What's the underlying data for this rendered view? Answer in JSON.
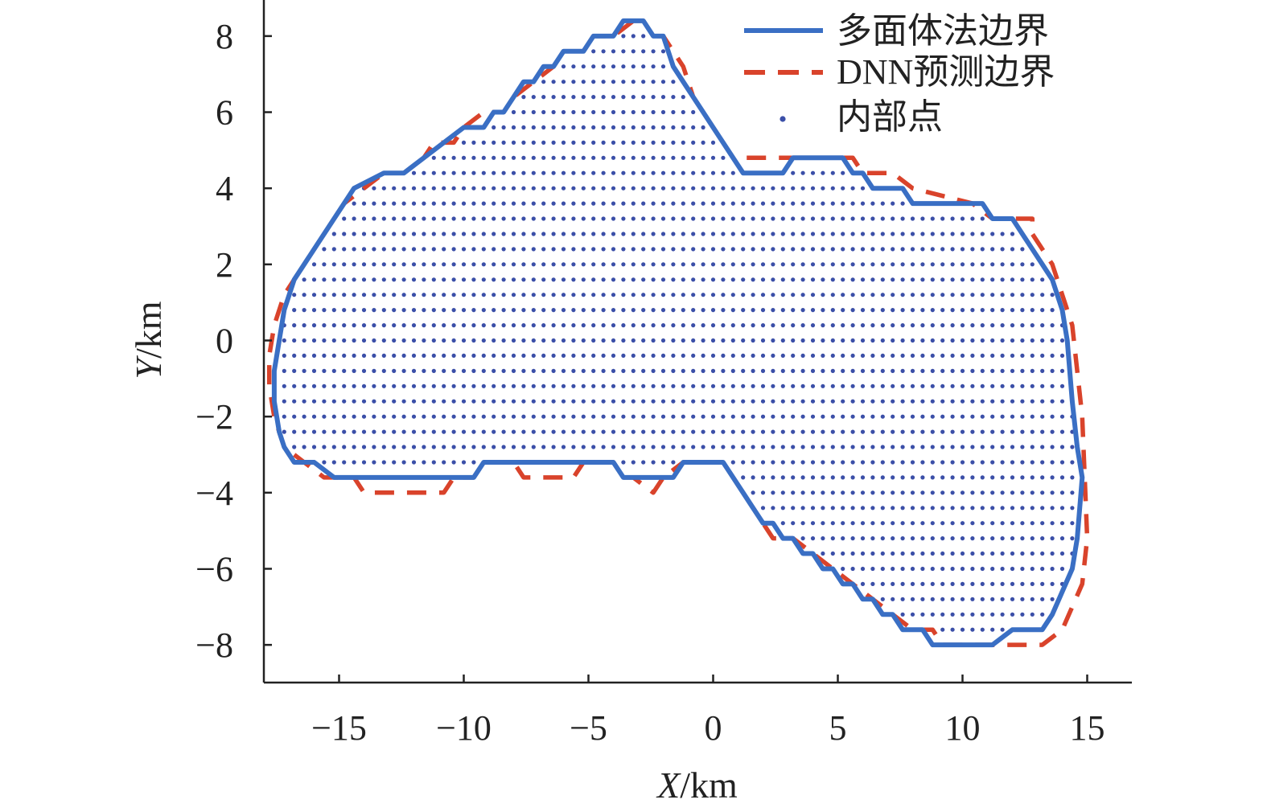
{
  "chart_data": {
    "type": "scatter",
    "title": "",
    "xlabel": "X/km",
    "ylabel": "Y/km",
    "xlabel_parts": {
      "var": "X",
      "unit": "/km"
    },
    "ylabel_parts": {
      "var": "Y",
      "unit": "/km"
    },
    "xlim": [
      -18,
      17
    ],
    "ylim": [
      -9,
      8.6
    ],
    "xticks": [
      -15,
      -10,
      -5,
      0,
      5,
      10,
      15
    ],
    "yticks": [
      -8,
      -6,
      -4,
      -2,
      0,
      2,
      4,
      6,
      8
    ],
    "xtick_labels": [
      "−15",
      "−10",
      "−5",
      "0",
      "5",
      "10",
      "15"
    ],
    "ytick_labels": [
      "−8",
      "−6",
      "−4",
      "−2",
      "0",
      "2",
      "4",
      "6",
      "8"
    ],
    "grid": false,
    "legend_position": "top-right",
    "colors": {
      "polyhedral": "#3a6fc4",
      "dnn": "#d9432b",
      "interior": "#3b4fa8"
    },
    "grid_spacing": 0.4,
    "series": [
      {
        "name": "多面体法边界",
        "style": "solid",
        "points": [
          [
            -3.6,
            8.4
          ],
          [
            -2.8,
            8.4
          ],
          [
            -2.4,
            8.0
          ],
          [
            -2.0,
            8.0
          ],
          [
            -1.6,
            7.2
          ],
          [
            -1.2,
            6.8
          ],
          [
            -0.8,
            6.4
          ],
          [
            -0.4,
            6.0
          ],
          [
            0.0,
            5.6
          ],
          [
            0.4,
            5.2
          ],
          [
            0.8,
            4.8
          ],
          [
            1.2,
            4.4
          ],
          [
            2.8,
            4.4
          ],
          [
            3.2,
            4.8
          ],
          [
            5.2,
            4.8
          ],
          [
            5.6,
            4.4
          ],
          [
            6.0,
            4.4
          ],
          [
            6.4,
            4.0
          ],
          [
            7.6,
            4.0
          ],
          [
            8.0,
            3.6
          ],
          [
            10.8,
            3.6
          ],
          [
            11.2,
            3.2
          ],
          [
            12.0,
            3.2
          ],
          [
            12.4,
            2.8
          ],
          [
            12.8,
            2.4
          ],
          [
            13.2,
            2.0
          ],
          [
            13.6,
            1.6
          ],
          [
            14.0,
            0.8
          ],
          [
            14.2,
            0.0
          ],
          [
            14.4,
            -1.6
          ],
          [
            14.6,
            -2.8
          ],
          [
            14.8,
            -3.6
          ],
          [
            14.7,
            -4.4
          ],
          [
            14.6,
            -5.2
          ],
          [
            14.4,
            -6.0
          ],
          [
            13.6,
            -7.2
          ],
          [
            13.2,
            -7.6
          ],
          [
            12.0,
            -7.6
          ],
          [
            11.2,
            -8.0
          ],
          [
            8.8,
            -8.0
          ],
          [
            8.4,
            -7.6
          ],
          [
            7.6,
            -7.6
          ],
          [
            7.2,
            -7.2
          ],
          [
            6.8,
            -7.2
          ],
          [
            6.4,
            -6.8
          ],
          [
            6.0,
            -6.8
          ],
          [
            5.6,
            -6.4
          ],
          [
            5.2,
            -6.4
          ],
          [
            4.8,
            -6.0
          ],
          [
            4.4,
            -6.0
          ],
          [
            4.0,
            -5.6
          ],
          [
            3.6,
            -5.6
          ],
          [
            3.2,
            -5.2
          ],
          [
            2.8,
            -5.2
          ],
          [
            2.4,
            -4.8
          ],
          [
            2.0,
            -4.8
          ],
          [
            1.6,
            -4.4
          ],
          [
            1.2,
            -4.0
          ],
          [
            0.8,
            -3.6
          ],
          [
            0.4,
            -3.2
          ],
          [
            -1.2,
            -3.2
          ],
          [
            -1.6,
            -3.6
          ],
          [
            -3.6,
            -3.6
          ],
          [
            -4.0,
            -3.2
          ],
          [
            -9.2,
            -3.2
          ],
          [
            -9.6,
            -3.6
          ],
          [
            -15.2,
            -3.6
          ],
          [
            -16.0,
            -3.2
          ],
          [
            -16.8,
            -3.2
          ],
          [
            -17.2,
            -2.8
          ],
          [
            -17.4,
            -2.4
          ],
          [
            -17.6,
            -1.6
          ],
          [
            -17.6,
            -0.8
          ],
          [
            -17.4,
            0.0
          ],
          [
            -17.2,
            0.8
          ],
          [
            -16.8,
            1.6
          ],
          [
            -16.0,
            2.4
          ],
          [
            -15.2,
            3.2
          ],
          [
            -14.4,
            4.0
          ],
          [
            -13.2,
            4.4
          ],
          [
            -12.4,
            4.4
          ],
          [
            -11.6,
            4.8
          ],
          [
            -10.8,
            5.2
          ],
          [
            -10.0,
            5.6
          ],
          [
            -9.2,
            5.6
          ],
          [
            -8.8,
            6.0
          ],
          [
            -8.4,
            6.0
          ],
          [
            -8.0,
            6.4
          ],
          [
            -7.6,
            6.8
          ],
          [
            -7.2,
            6.8
          ],
          [
            -6.8,
            7.2
          ],
          [
            -6.4,
            7.2
          ],
          [
            -6.0,
            7.6
          ],
          [
            -5.2,
            7.6
          ],
          [
            -4.8,
            8.0
          ],
          [
            -4.0,
            8.0
          ]
        ]
      },
      {
        "name": "DNN预测边界",
        "style": "dashed",
        "points": [
          [
            -3.2,
            8.4
          ],
          [
            -2.8,
            8.4
          ],
          [
            -2.4,
            8.0
          ],
          [
            -2.0,
            8.0
          ],
          [
            -1.6,
            7.6
          ],
          [
            -1.2,
            7.2
          ],
          [
            -0.8,
            6.4
          ],
          [
            -0.4,
            6.0
          ],
          [
            0.0,
            5.6
          ],
          [
            0.4,
            5.2
          ],
          [
            0.8,
            4.8
          ],
          [
            3.2,
            4.8
          ],
          [
            5.6,
            4.8
          ],
          [
            6.0,
            4.4
          ],
          [
            7.2,
            4.4
          ],
          [
            8.0,
            4.0
          ],
          [
            10.4,
            3.6
          ],
          [
            11.2,
            3.2
          ],
          [
            12.8,
            3.2
          ],
          [
            12.8,
            2.8
          ],
          [
            13.2,
            2.4
          ],
          [
            13.6,
            2.0
          ],
          [
            14.0,
            1.2
          ],
          [
            14.4,
            0.4
          ],
          [
            14.6,
            -0.8
          ],
          [
            14.8,
            -2.0
          ],
          [
            14.9,
            -3.6
          ],
          [
            15.0,
            -5.2
          ],
          [
            14.8,
            -6.4
          ],
          [
            14.0,
            -7.6
          ],
          [
            13.2,
            -8.0
          ],
          [
            9.2,
            -8.0
          ],
          [
            8.8,
            -7.6
          ],
          [
            8.0,
            -7.6
          ],
          [
            7.2,
            -7.2
          ],
          [
            6.4,
            -6.8
          ],
          [
            5.6,
            -6.4
          ],
          [
            4.8,
            -6.0
          ],
          [
            4.0,
            -5.6
          ],
          [
            3.2,
            -5.2
          ],
          [
            2.4,
            -5.2
          ],
          [
            1.6,
            -4.4
          ],
          [
            0.8,
            -3.6
          ],
          [
            0.4,
            -3.2
          ],
          [
            -1.2,
            -3.2
          ],
          [
            -2.0,
            -3.6
          ],
          [
            -2.4,
            -4.0
          ],
          [
            -3.2,
            -3.6
          ],
          [
            -3.6,
            -3.6
          ],
          [
            -4.0,
            -3.2
          ],
          [
            -5.2,
            -3.2
          ],
          [
            -5.6,
            -3.6
          ],
          [
            -7.6,
            -3.6
          ],
          [
            -8.0,
            -3.2
          ],
          [
            -9.2,
            -3.2
          ],
          [
            -9.6,
            -3.6
          ],
          [
            -10.4,
            -3.6
          ],
          [
            -10.8,
            -4.0
          ],
          [
            -14.0,
            -4.0
          ],
          [
            -14.4,
            -3.6
          ],
          [
            -15.6,
            -3.6
          ],
          [
            -16.4,
            -3.2
          ],
          [
            -17.2,
            -2.8
          ],
          [
            -17.6,
            -2.0
          ],
          [
            -17.8,
            -1.2
          ],
          [
            -17.8,
            -0.4
          ],
          [
            -17.6,
            0.4
          ],
          [
            -17.2,
            1.2
          ],
          [
            -16.4,
            2.0
          ],
          [
            -15.6,
            2.8
          ],
          [
            -15.2,
            3.2
          ],
          [
            -14.8,
            3.6
          ],
          [
            -14.0,
            4.0
          ],
          [
            -13.2,
            4.4
          ],
          [
            -12.4,
            4.4
          ],
          [
            -11.6,
            4.8
          ],
          [
            -11.2,
            5.2
          ],
          [
            -10.4,
            5.2
          ],
          [
            -10.0,
            5.6
          ],
          [
            -9.2,
            6.0
          ],
          [
            -8.4,
            6.0
          ],
          [
            -8.0,
            6.4
          ],
          [
            -7.2,
            6.8
          ],
          [
            -6.4,
            7.2
          ],
          [
            -6.0,
            7.6
          ],
          [
            -5.2,
            7.6
          ],
          [
            -4.8,
            8.0
          ],
          [
            -4.0,
            8.0
          ]
        ]
      },
      {
        "name": "内部点",
        "style": "points",
        "fill_within": "多面体法边界"
      }
    ]
  }
}
